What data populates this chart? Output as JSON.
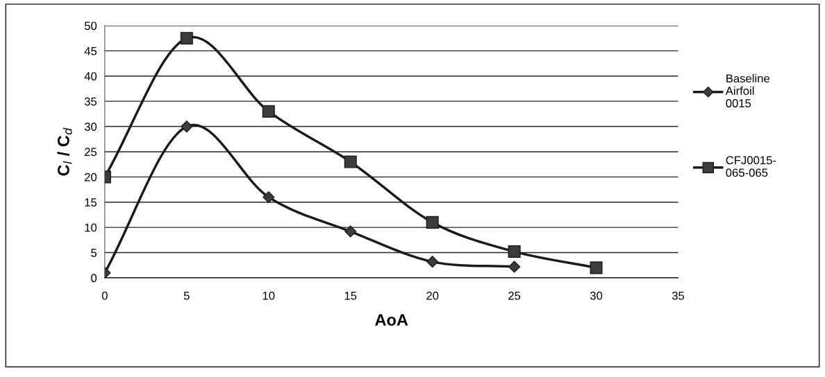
{
  "chart_data": {
    "type": "line",
    "xlabel": "AoA",
    "ylabel": "C$_{l}$ / C$_{d}$",
    "xlim": [
      0,
      35
    ],
    "xticks": [
      0,
      5,
      10,
      15,
      20,
      25,
      30,
      35
    ],
    "ylim": [
      0,
      50
    ],
    "yticks": [
      0,
      5,
      10,
      15,
      20,
      25,
      30,
      35,
      40,
      45,
      50
    ],
    "grid": "y",
    "legend": "right",
    "line_style": "solid",
    "series": [
      {
        "name": "Baseline Airfoil 0015",
        "color": "#1a1a1a",
        "marker": "diamond",
        "x": [
          0,
          5,
          10,
          15,
          20,
          25
        ],
        "values": [
          1,
          30,
          16,
          9.2,
          3.2,
          2.2
        ]
      },
      {
        "name": "CFJ0015-065-065",
        "color": "#1a1a1a",
        "marker": "square",
        "x": [
          0,
          5,
          10,
          15,
          20,
          25,
          30
        ],
        "values": [
          20,
          47.5,
          33,
          23,
          11,
          5.2,
          2.0
        ]
      }
    ]
  }
}
